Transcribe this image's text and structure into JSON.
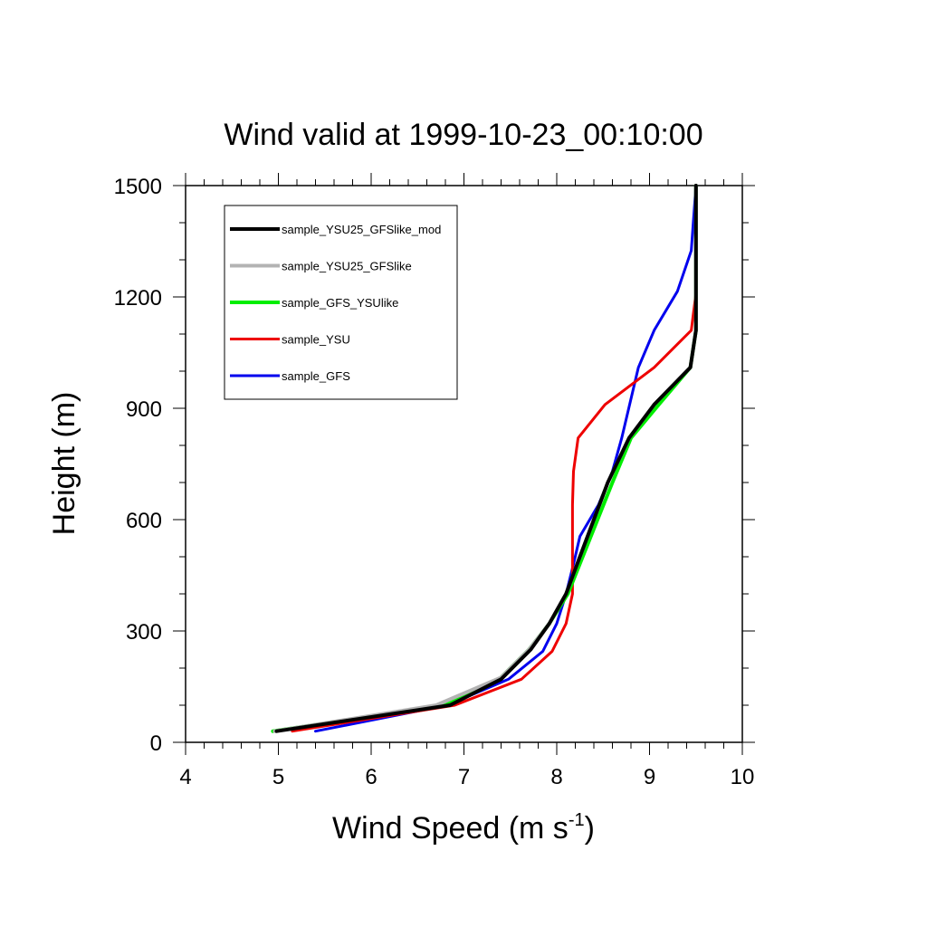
{
  "chart_data": {
    "type": "line",
    "title": "Wind valid at 1999-10-23_00:10:00",
    "xlabel_main": "Wind Speed (m s",
    "xlabel_sup": "-1",
    "xlabel_close": ")",
    "ylabel": "Height (m)",
    "xlim": [
      4,
      10
    ],
    "ylim": [
      0,
      1500
    ],
    "xticks": [
      "4",
      "5",
      "6",
      "7",
      "8",
      "9",
      "10"
    ],
    "yticks": [
      "0",
      "300",
      "600",
      "900",
      "1200",
      "1500"
    ],
    "legend_position": "top-left",
    "series": [
      {
        "name": "sample_YSU25_GFSlike_mod",
        "color": "#000000",
        "points": [
          [
            4.98,
            30
          ],
          [
            6.85,
            100
          ],
          [
            7.4,
            170
          ],
          [
            7.72,
            250
          ],
          [
            7.92,
            320
          ],
          [
            8.1,
            400
          ],
          [
            8.25,
            500
          ],
          [
            8.4,
            600
          ],
          [
            8.55,
            700
          ],
          [
            8.78,
            820
          ],
          [
            9.05,
            910
          ],
          [
            9.44,
            1010
          ],
          [
            9.5,
            1110
          ],
          [
            9.5,
            1210
          ],
          [
            9.5,
            1320
          ],
          [
            9.5,
            1500
          ]
        ]
      },
      {
        "name": "sample_YSU25_GFSlike",
        "color": "#b3b3b3",
        "points": [
          [
            4.96,
            30
          ],
          [
            6.7,
            100
          ],
          [
            7.4,
            175
          ],
          [
            7.7,
            250
          ],
          [
            7.92,
            320
          ],
          [
            8.1,
            400
          ],
          [
            8.25,
            500
          ],
          [
            8.4,
            600
          ],
          [
            8.55,
            700
          ],
          [
            8.78,
            820
          ],
          [
            9.05,
            910
          ],
          [
            9.44,
            1010
          ],
          [
            9.5,
            1110
          ],
          [
            9.5,
            1210
          ],
          [
            9.5,
            1320
          ],
          [
            9.5,
            1500
          ]
        ]
      },
      {
        "name": "sample_GFS_YSUlike",
        "color": "#00ee00",
        "points": [
          [
            4.94,
            30
          ],
          [
            6.8,
            100
          ],
          [
            7.38,
            170
          ],
          [
            7.7,
            250
          ],
          [
            7.92,
            320
          ],
          [
            8.12,
            400
          ],
          [
            8.28,
            500
          ],
          [
            8.44,
            600
          ],
          [
            8.6,
            700
          ],
          [
            8.8,
            820
          ],
          [
            9.1,
            910
          ],
          [
            9.44,
            1010
          ],
          [
            9.5,
            1110
          ],
          [
            9.5,
            1210
          ],
          [
            9.5,
            1320
          ],
          [
            9.5,
            1500
          ]
        ]
      },
      {
        "name": "sample_YSU",
        "color": "#ee0000",
        "points": [
          [
            5.15,
            30
          ],
          [
            6.9,
            100
          ],
          [
            7.62,
            170
          ],
          [
            7.95,
            245
          ],
          [
            8.1,
            320
          ],
          [
            8.17,
            400
          ],
          [
            8.17,
            500
          ],
          [
            8.17,
            640
          ],
          [
            8.18,
            730
          ],
          [
            8.23,
            820
          ],
          [
            8.52,
            910
          ],
          [
            9.05,
            1010
          ],
          [
            9.45,
            1110
          ],
          [
            9.5,
            1210
          ],
          [
            9.5,
            1320
          ],
          [
            9.5,
            1500
          ]
        ]
      },
      {
        "name": "sample_GFS",
        "color": "#0000ee",
        "points": [
          [
            5.4,
            30
          ],
          [
            6.82,
            100
          ],
          [
            7.48,
            170
          ],
          [
            7.85,
            245
          ],
          [
            8.0,
            320
          ],
          [
            8.1,
            400
          ],
          [
            8.18,
            480
          ],
          [
            8.25,
            555
          ],
          [
            8.45,
            640
          ],
          [
            8.6,
            730
          ],
          [
            8.7,
            820
          ],
          [
            8.88,
            1010
          ],
          [
            9.05,
            1110
          ],
          [
            9.3,
            1215
          ],
          [
            9.45,
            1325
          ],
          [
            9.5,
            1500
          ]
        ]
      }
    ]
  }
}
